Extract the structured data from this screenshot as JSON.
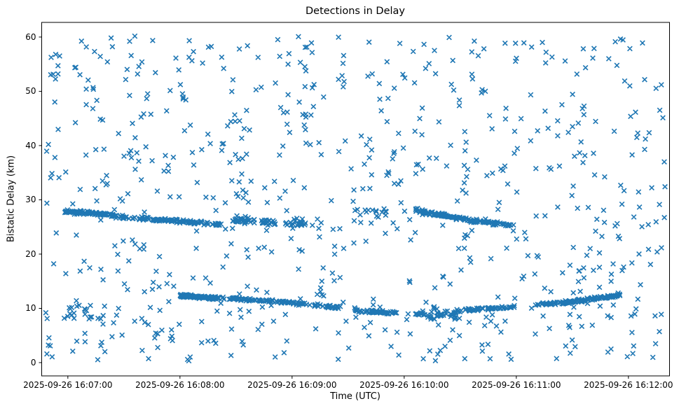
{
  "figure": {
    "background": "#ffffff",
    "text_color": "#000000"
  },
  "chart_data": {
    "type": "scatter",
    "title": "Detections in Delay",
    "xlabel": "Time (UTC)",
    "ylabel": "Bistatic Delay (km)",
    "grid": false,
    "legend": null,
    "marker": {
      "shape": "x",
      "color": "#1f77b4",
      "half_size_px": 3.3,
      "stroke_px": 1.6
    },
    "x_axis": {
      "kind": "time-utc",
      "tick_labels": [
        "2025-09-26 16:07:00",
        "2025-09-26 16:08:00",
        "2025-09-26 16:09:00",
        "2025-09-26 16:10:00",
        "2025-09-26 16:11:00",
        "2025-09-26 16:12:00"
      ],
      "tick_seconds": [
        0,
        60,
        120,
        180,
        240,
        300
      ],
      "range_seconds": [
        -14,
        322
      ]
    },
    "y_axis": {
      "tick_labels": [
        "0",
        "10",
        "20",
        "30",
        "40",
        "50",
        "60"
      ],
      "ticks": [
        0,
        10,
        20,
        30,
        40,
        50,
        60
      ],
      "range": [
        -2.45,
        62.7
      ]
    },
    "series": [
      {
        "name": "clutter",
        "kind": "uniform-random",
        "n": 735,
        "t_range": [
          -12,
          320
        ],
        "delay_range": [
          0.3,
          60.2
        ],
        "seed": 11
      },
      {
        "name": "clutter-cluster-low-left",
        "kind": "uniform-random",
        "n": 18,
        "t_range": [
          -2,
          16
        ],
        "delay_range": [
          8.0,
          11.8
        ],
        "seed": 22
      },
      {
        "name": "clutter-cluster-pre-pass2",
        "kind": "uniform-random",
        "n": 14,
        "t_range": [
          155,
          173
        ],
        "delay_range": [
          26.8,
          28.4
        ],
        "seed": 33
      },
      {
        "name": "track-b-dip-cluster",
        "kind": "uniform-random",
        "n": 30,
        "t_range": [
          188,
          211
        ],
        "delay_range": [
          8.0,
          9.9
        ],
        "seed": 44
      },
      {
        "name": "track-a-pass-1",
        "kind": "track",
        "jitter": 0.15,
        "seed": 55,
        "waypoints": [
          [
            -2,
            27.9
          ],
          [
            21,
            27.3
          ],
          [
            29,
            26.85
          ],
          [
            80,
            25.5
          ]
        ],
        "bursts": [
          [
            -2,
            21,
            72
          ],
          [
            22,
            30,
            28
          ],
          [
            30,
            58,
            62
          ],
          [
            58,
            82,
            58
          ]
        ]
      },
      {
        "name": "track-a-echo",
        "kind": "track",
        "jitter": 0.28,
        "seed": 66,
        "waypoints": [
          [
            88,
            26.5
          ],
          [
            105,
            25.95
          ],
          [
            128,
            25.6
          ]
        ],
        "bursts": [
          [
            88,
            100,
            30
          ],
          [
            103,
            111,
            22
          ],
          [
            116,
            128,
            22
          ]
        ]
      },
      {
        "name": "track-a-pass-2",
        "kind": "track",
        "jitter": 0.15,
        "seed": 77,
        "waypoints": [
          [
            186,
            28.1
          ],
          [
            215,
            26.2
          ],
          [
            238,
            25.3
          ]
        ],
        "bursts": [
          [
            186,
            218,
            95
          ],
          [
            218,
            239,
            42
          ]
        ]
      },
      {
        "name": "track-b",
        "kind": "track",
        "jitter": 0.13,
        "seed": 88,
        "waypoints": [
          [
            60,
            12.3
          ],
          [
            80,
            11.9
          ],
          [
            110,
            11.3
          ],
          [
            135,
            10.5
          ],
          [
            150,
            10.1
          ],
          [
            156,
            9.5
          ],
          [
            177,
            9.15
          ],
          [
            200,
            8.6
          ],
          [
            212,
            9.65
          ],
          [
            240,
            10.35
          ],
          [
            258,
            10.85
          ],
          [
            266,
            11.05
          ],
          [
            296,
            12.45
          ]
        ],
        "bursts": [
          [
            60,
            76,
            85
          ],
          [
            76,
            103,
            62
          ],
          [
            103,
            130,
            46
          ],
          [
            132,
            146,
            24
          ],
          [
            153,
            177,
            56
          ],
          [
            186,
            211,
            20
          ],
          [
            212,
            240,
            46
          ],
          [
            250,
            262,
            20
          ],
          [
            263,
            296,
            92
          ]
        ]
      }
    ]
  }
}
